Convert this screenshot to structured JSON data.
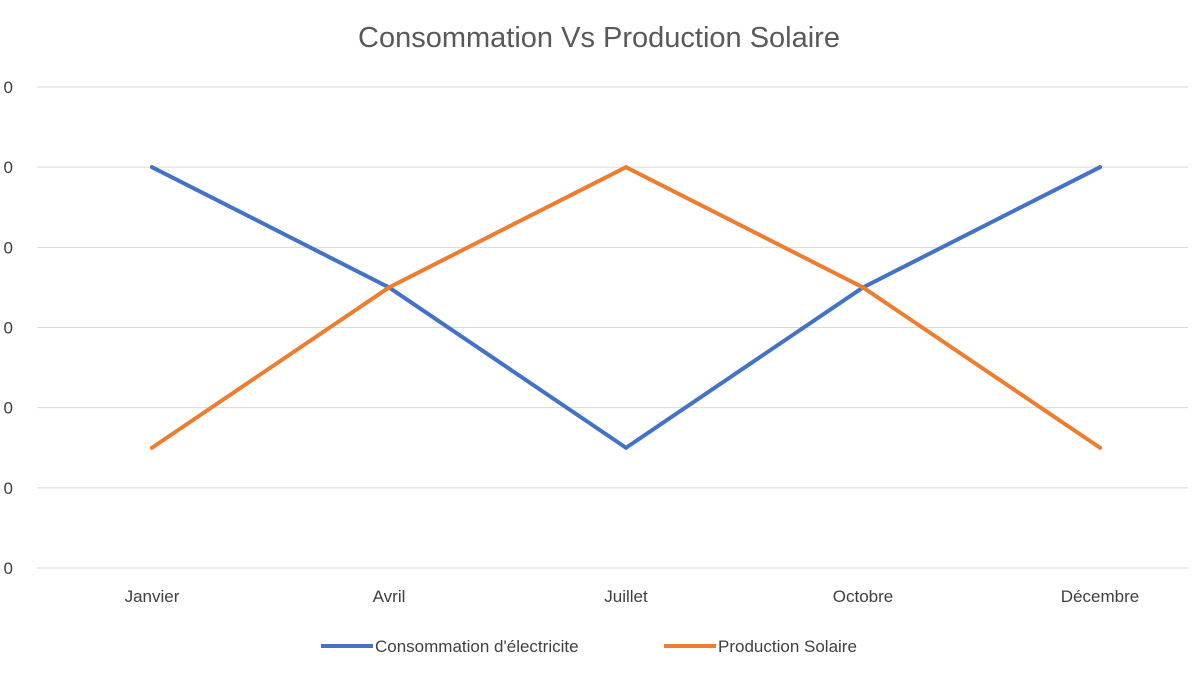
{
  "chart_data": {
    "type": "line",
    "title": "Consommation Vs Production Solaire",
    "xlabel": "",
    "ylabel": "",
    "categories": [
      "Janvier",
      "Avril",
      "Juillet",
      "Octobre",
      "Décembre"
    ],
    "y_tick_labels": [
      "0",
      "0",
      "0",
      "0",
      "0",
      "0",
      "0"
    ],
    "ylim": [
      0,
      6
    ],
    "y_ticks": [
      0,
      1,
      2,
      3,
      4,
      5,
      6
    ],
    "grid": true,
    "legend_position": "bottom",
    "series": [
      {
        "name": "Consommation d'électricite",
        "color": "#4472c4",
        "values": [
          5,
          3.5,
          1.5,
          3.5,
          5
        ]
      },
      {
        "name": "Production Solaire",
        "color": "#ed7d31",
        "values": [
          1.5,
          3.5,
          5,
          3.5,
          1.5
        ]
      }
    ]
  }
}
